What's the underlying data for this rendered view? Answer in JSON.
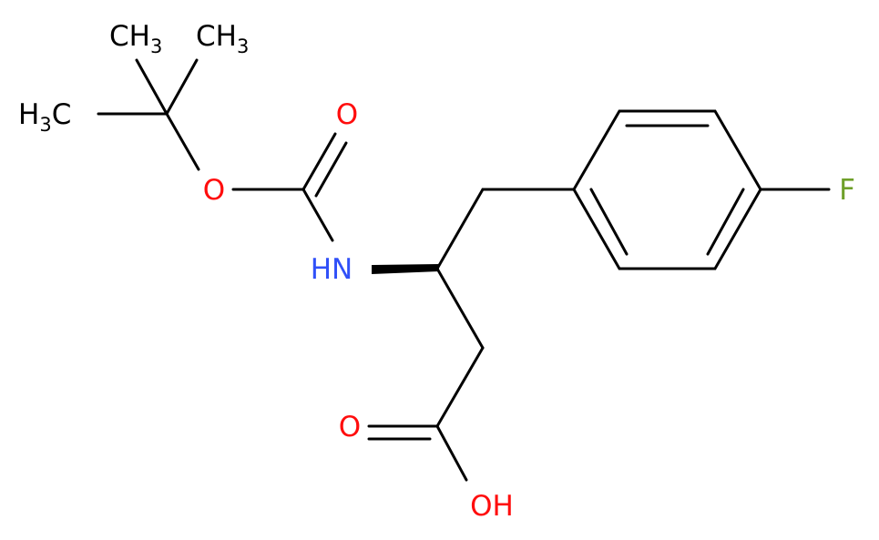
{
  "atoms": [
    [
      "CH",
      "3"
    ],
    [
      "CH",
      "3"
    ],
    [
      "H",
      "3",
      "C"
    ],
    [
      "O"
    ],
    [
      "O"
    ],
    [
      "HN"
    ],
    [
      "F"
    ],
    [
      "O"
    ],
    [
      "OH"
    ]
  ]
}
